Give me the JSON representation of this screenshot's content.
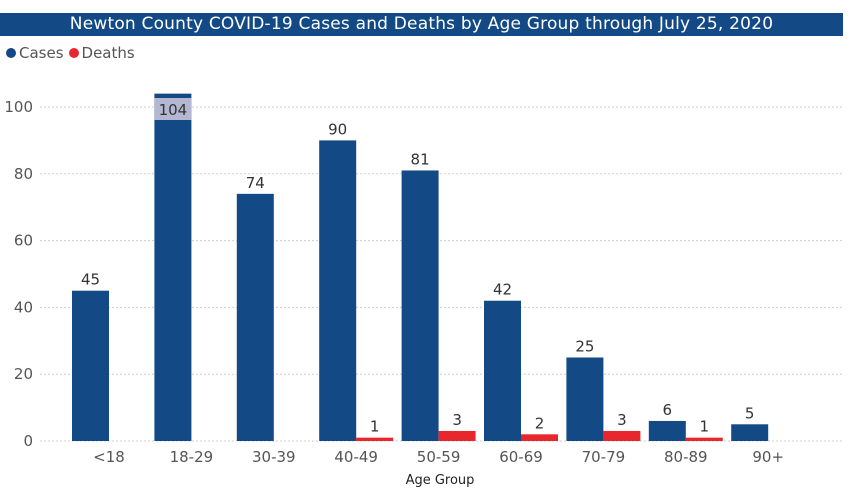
{
  "chart_data": {
    "type": "bar",
    "title": "Newton County COVID-19 Cases and Deaths by Age Group through July 25, 2020",
    "xlabel": "Age Group",
    "ylabel": "",
    "ylim": [
      0,
      100
    ],
    "yticks": [
      0,
      20,
      40,
      60,
      80,
      100
    ],
    "grid": true,
    "legend_position": "top-left",
    "categories": [
      "<18",
      "18-29",
      "30-39",
      "40-49",
      "50-59",
      "60-69",
      "70-79",
      "80-89",
      "90+"
    ],
    "series": [
      {
        "name": "Cases",
        "color": "#134a85",
        "values": [
          45,
          104,
          74,
          90,
          81,
          42,
          25,
          6,
          5
        ]
      },
      {
        "name": "Deaths",
        "color": "#e8262e",
        "values": [
          null,
          null,
          null,
          1,
          3,
          2,
          3,
          1,
          null
        ]
      }
    ]
  },
  "legend": [
    {
      "label": "Cases",
      "color": "#134a85"
    },
    {
      "label": "Deaths",
      "color": "#e8262e"
    }
  ]
}
